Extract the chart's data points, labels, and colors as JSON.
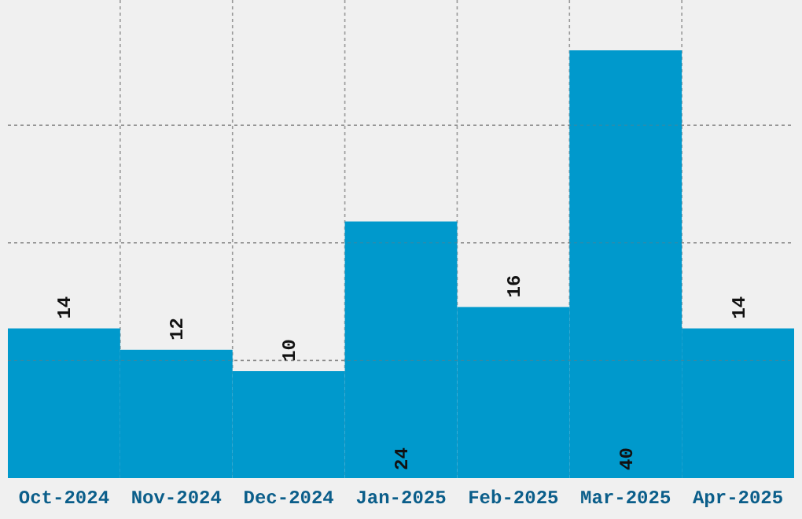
{
  "chart_data": {
    "type": "bar",
    "categories": [
      "Oct-2024",
      "Nov-2024",
      "Dec-2024",
      "Jan-2025",
      "Feb-2025",
      "Mar-2025",
      "Apr-2025"
    ],
    "values": [
      14,
      12,
      10,
      24,
      16,
      40,
      14
    ],
    "color": "#0099cc",
    "data_labels": true,
    "grid": true,
    "tick_labels": "x",
    "yticks": [
      {
        "value": 11,
        "label": null
      },
      {
        "value": 22,
        "label": null
      },
      {
        "value": 33,
        "label": null
      }
    ]
  }
}
